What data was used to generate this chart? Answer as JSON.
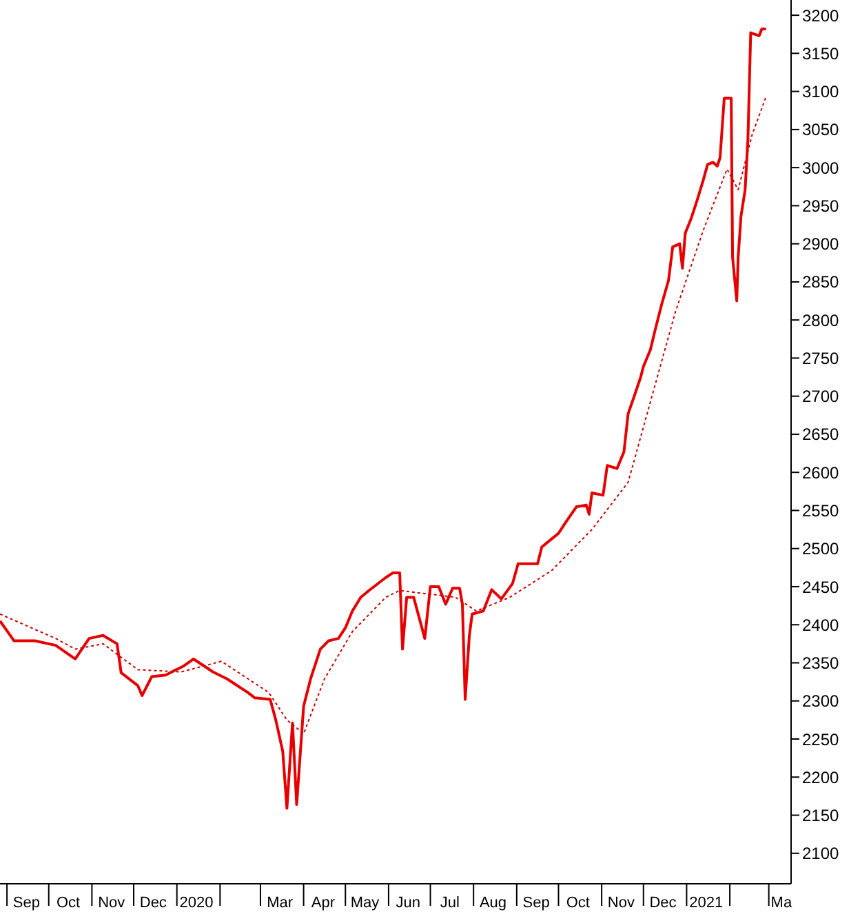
{
  "chart_data": {
    "type": "line",
    "grid": false,
    "marker": "none",
    "xlim": [
      "2019-08-27",
      "2021-03-17"
    ],
    "xticks": [
      {
        "value": "2019-09-01",
        "label": null
      },
      {
        "value": "2019-10-01",
        "label": null
      },
      {
        "value": "2019-11-01",
        "label": null
      },
      {
        "value": "2019-12-01",
        "label": null
      },
      {
        "value": "2020-01-01",
        "label": null
      },
      {
        "value": "2020-02-01",
        "label": null
      },
      {
        "value": "2020-03-01",
        "label": null
      },
      {
        "value": "2020-04-01",
        "label": null
      },
      {
        "value": "2020-05-01",
        "label": null
      },
      {
        "value": "2020-06-01",
        "label": null
      },
      {
        "value": "2020-07-01",
        "label": null
      },
      {
        "value": "2020-08-01",
        "label": null
      },
      {
        "value": "2020-09-01",
        "label": null
      },
      {
        "value": "2020-10-01",
        "label": null
      },
      {
        "value": "2020-11-01",
        "label": null
      },
      {
        "value": "2020-12-01",
        "label": null
      },
      {
        "value": "2021-01-01",
        "label": null
      },
      {
        "value": "2021-02-01",
        "label": null
      },
      {
        "value": "2021-03-01",
        "label": null
      },
      {
        "value": "2019-09-15",
        "label": "Sep"
      },
      {
        "value": "2019-10-15",
        "label": "Oct"
      },
      {
        "value": "2019-11-15",
        "label": "Nov"
      },
      {
        "value": "2019-12-15",
        "label": "Dec"
      },
      {
        "value": "2020-01-15",
        "label": "2020"
      },
      {
        "value": "2020-03-15",
        "label": "Mar"
      },
      {
        "value": "2020-04-15",
        "label": "Apr"
      },
      {
        "value": "2020-05-15",
        "label": "May"
      },
      {
        "value": "2020-06-15",
        "label": "Jun"
      },
      {
        "value": "2020-07-15",
        "label": "Jul"
      },
      {
        "value": "2020-08-15",
        "label": "Aug"
      },
      {
        "value": "2020-09-15",
        "label": "Sep"
      },
      {
        "value": "2020-10-15",
        "label": "Oct"
      },
      {
        "value": "2020-11-15",
        "label": "Nov"
      },
      {
        "value": "2020-12-15",
        "label": "Dec"
      },
      {
        "value": "2021-01-15",
        "label": "2021"
      },
      {
        "value": "2021-03-10",
        "label": "Ma"
      }
    ],
    "ylim": [
      2060,
      3220
    ],
    "yticks": [
      2100,
      2150,
      2200,
      2250,
      2300,
      2350,
      2400,
      2450,
      2500,
      2550,
      2600,
      2650,
      2700,
      2750,
      2800,
      2850,
      2900,
      2950,
      3000,
      3050,
      3100,
      3150,
      3200
    ],
    "series": [
      {
        "color": "#e60000",
        "line_style": "solid",
        "x": [
          "2019-08-27",
          "2019-09-06",
          "2019-09-21",
          "2019-10-06",
          "2019-10-20",
          "2019-10-30",
          "2019-11-09",
          "2019-11-19",
          "2019-11-22",
          "2019-12-04",
          "2019-12-07",
          "2019-12-14",
          "2019-12-24",
          "2020-01-06",
          "2020-01-13",
          "2020-01-27",
          "2020-02-06",
          "2020-02-21",
          "2020-02-26",
          "2020-03-08",
          "2020-03-12",
          "2020-03-17",
          "2020-03-20",
          "2020-03-24",
          "2020-03-27",
          "2020-04-01",
          "2020-04-06",
          "2020-04-13",
          "2020-04-19",
          "2020-04-26",
          "2020-05-01",
          "2020-05-06",
          "2020-05-12",
          "2020-05-18",
          "2020-05-30",
          "2020-06-04",
          "2020-06-09",
          "2020-06-11",
          "2020-06-14",
          "2020-06-19",
          "2020-06-27",
          "2020-07-01",
          "2020-07-07",
          "2020-07-12",
          "2020-07-17",
          "2020-07-22",
          "2020-07-24",
          "2020-07-26",
          "2020-07-29",
          "2020-07-31",
          "2020-08-08",
          "2020-08-14",
          "2020-08-21",
          "2020-08-29",
          "2020-09-02",
          "2020-09-16",
          "2020-09-19",
          "2020-10-01",
          "2020-10-06",
          "2020-10-14",
          "2020-10-21",
          "2020-10-23",
          "2020-10-25",
          "2020-11-02",
          "2020-11-05",
          "2020-11-12",
          "2020-11-17",
          "2020-11-20",
          "2020-11-24",
          "2020-11-29",
          "2020-12-01",
          "2020-12-06",
          "2020-12-09",
          "2020-12-14",
          "2020-12-19",
          "2020-12-22",
          "2020-12-27",
          "2020-12-29",
          "2020-12-31",
          "2021-01-04",
          "2021-01-08",
          "2021-01-13",
          "2021-01-16",
          "2021-01-20",
          "2021-01-23",
          "2021-01-25",
          "2021-01-28",
          "2021-02-02",
          "2021-02-03",
          "2021-02-06",
          "2021-02-07",
          "2021-02-09",
          "2021-02-12",
          "2021-02-14",
          "2021-02-16",
          "2021-02-22",
          "2021-02-24",
          "2021-02-27"
        ],
        "values": [
          2405,
          2379,
          2379,
          2373,
          2355,
          2382,
          2386,
          2375,
          2337,
          2320,
          2307,
          2332,
          2334,
          2346,
          2355,
          2338,
          2329,
          2311,
          2304,
          2302,
          2275,
          2234,
          2159,
          2271,
          2164,
          2293,
          2329,
          2368,
          2379,
          2382,
          2396,
          2418,
          2436,
          2445,
          2462,
          2468,
          2468,
          2368,
          2436,
          2436,
          2382,
          2450,
          2450,
          2427,
          2448,
          2448,
          2427,
          2302,
          2386,
          2414,
          2418,
          2446,
          2434,
          2454,
          2480,
          2480,
          2502,
          2520,
          2534,
          2555,
          2557,
          2545,
          2573,
          2570,
          2609,
          2605,
          2627,
          2677,
          2698,
          2725,
          2739,
          2761,
          2784,
          2820,
          2852,
          2896,
          2900,
          2868,
          2914,
          2932,
          2954,
          2984,
          3004,
          3007,
          3002,
          3013,
          3091,
          3091,
          2882,
          2825,
          2882,
          2936,
          2971,
          3037,
          3177,
          3173,
          3182,
          3182
        ]
      },
      {
        "color": "#cc0000",
        "line_style": "dotted",
        "x": [
          "2019-08-27",
          "2019-10-06",
          "2019-10-20",
          "2019-11-09",
          "2019-12-04",
          "2020-01-04",
          "2020-02-02",
          "2020-03-07",
          "2020-03-20",
          "2020-04-01",
          "2020-04-16",
          "2020-05-06",
          "2020-05-30",
          "2020-06-09",
          "2020-07-19",
          "2020-08-03",
          "2020-08-27",
          "2020-09-26",
          "2020-10-25",
          "2020-11-20",
          "2020-12-05",
          "2020-12-24",
          "2021-01-13",
          "2021-01-30",
          "2021-02-07",
          "2021-02-17",
          "2021-02-27"
        ],
        "values": [
          2414,
          2382,
          2368,
          2375,
          2341,
          2338,
          2352,
          2311,
          2275,
          2257,
          2329,
          2391,
          2436,
          2445,
          2436,
          2418,
          2436,
          2471,
          2525,
          2587,
          2686,
          2811,
          2918,
          2998,
          2971,
          3043,
          3093
        ]
      }
    ]
  }
}
